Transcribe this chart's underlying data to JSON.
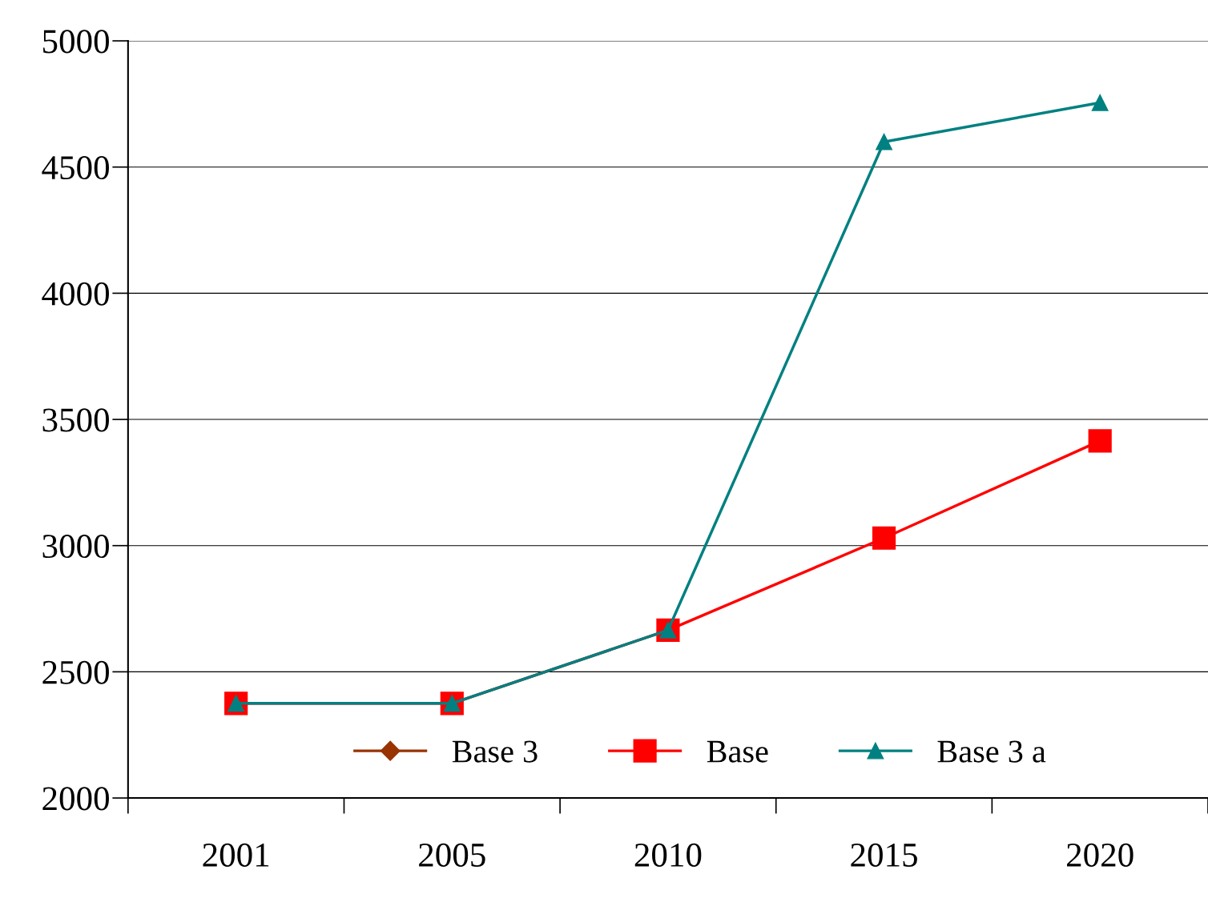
{
  "chart_data": {
    "type": "line",
    "categories": [
      "2001",
      "2005",
      "2010",
      "2015",
      "2020"
    ],
    "series": [
      {
        "name": "Base 3",
        "color": "#993300",
        "marker": "diamond",
        "values": [
          null,
          null,
          null,
          null,
          null
        ]
      },
      {
        "name": "Base",
        "color": "#ff0000",
        "marker": "square",
        "values": [
          2375,
          2375,
          2665,
          3030,
          3415
        ]
      },
      {
        "name": "Base 3 a",
        "color": "#008080",
        "marker": "triangle",
        "values": [
          2375,
          2375,
          2665,
          4600,
          4755
        ]
      }
    ],
    "ylim": [
      2000,
      5000
    ],
    "yticks": [
      2000,
      2500,
      3000,
      3500,
      4000,
      4500,
      5000
    ],
    "grid": "y",
    "legend": "bottom",
    "line_style": "solid"
  }
}
